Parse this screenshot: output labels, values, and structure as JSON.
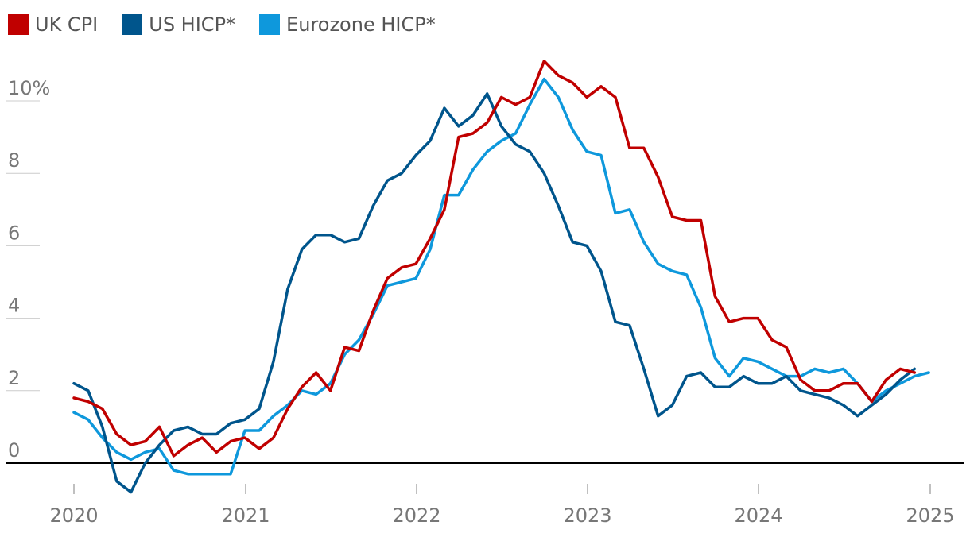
{
  "legend": {
    "items": [
      {
        "label": "UK CPI",
        "color": "#c00000"
      },
      {
        "label": "US HICP*",
        "color": "#00558c"
      },
      {
        "label": "Eurozone HICP*",
        "color": "#0e98dc"
      }
    ]
  },
  "chart_data": {
    "type": "line",
    "title": "",
    "xlabel": "",
    "ylabel": "",
    "ylim": [
      -1,
      12
    ],
    "y_ticks": [
      0,
      2,
      4,
      6,
      8,
      10
    ],
    "y_tick_labels": [
      "0",
      "2",
      "4",
      "6",
      "8",
      "10%"
    ],
    "x_ticks": [
      "2020",
      "2021",
      "2022",
      "2023",
      "2024",
      "2025"
    ],
    "x_start": "2020-01",
    "legend_position": "top-left",
    "grid": "horizontal-short",
    "series": [
      {
        "name": "UK CPI",
        "color": "#c00000",
        "values": [
          1.8,
          1.7,
          1.5,
          0.8,
          0.5,
          0.6,
          1.0,
          0.2,
          0.5,
          0.7,
          0.3,
          0.6,
          0.7,
          0.4,
          0.7,
          1.5,
          2.1,
          2.5,
          2.0,
          3.2,
          3.1,
          4.2,
          5.1,
          5.4,
          5.5,
          6.2,
          7.0,
          9.0,
          9.1,
          9.4,
          10.1,
          9.9,
          10.1,
          11.1,
          10.7,
          10.5,
          10.1,
          10.4,
          10.1,
          8.7,
          8.7,
          7.9,
          6.8,
          6.7,
          6.7,
          4.6,
          3.9,
          4.0,
          4.0,
          3.4,
          3.2,
          2.3,
          2.0,
          2.0,
          2.2,
          2.2,
          1.7,
          2.3,
          2.6,
          2.5
        ]
      },
      {
        "name": "US HICP*",
        "color": "#00558c",
        "values": [
          2.2,
          2.0,
          1.0,
          -0.5,
          -0.8,
          0.0,
          0.5,
          0.9,
          1.0,
          0.8,
          0.8,
          1.1,
          1.2,
          1.5,
          2.8,
          4.8,
          5.9,
          6.3,
          6.3,
          6.1,
          6.2,
          7.1,
          7.8,
          8.0,
          8.5,
          8.9,
          9.8,
          9.3,
          9.6,
          10.2,
          9.3,
          8.8,
          8.6,
          8.0,
          7.1,
          6.1,
          6.0,
          5.3,
          3.9,
          3.8,
          2.6,
          1.3,
          1.6,
          2.4,
          2.5,
          2.1,
          2.1,
          2.4,
          2.2,
          2.2,
          2.4,
          2.0,
          1.9,
          1.8,
          1.6,
          1.3,
          1.6,
          1.9,
          2.3,
          2.6
        ]
      },
      {
        "name": "Eurozone HICP*",
        "color": "#0e98dc",
        "values": [
          1.4,
          1.2,
          0.7,
          0.3,
          0.1,
          0.3,
          0.4,
          -0.2,
          -0.3,
          -0.3,
          -0.3,
          -0.3,
          0.9,
          0.9,
          1.3,
          1.6,
          2.0,
          1.9,
          2.2,
          3.0,
          3.4,
          4.1,
          4.9,
          5.0,
          5.1,
          5.9,
          7.4,
          7.4,
          8.1,
          8.6,
          8.9,
          9.1,
          9.9,
          10.6,
          10.1,
          9.2,
          8.6,
          8.5,
          6.9,
          7.0,
          6.1,
          5.5,
          5.3,
          5.2,
          4.3,
          2.9,
          2.4,
          2.9,
          2.8,
          2.6,
          2.4,
          2.4,
          2.6,
          2.5,
          2.6,
          2.2,
          1.7,
          2.0,
          2.2,
          2.4,
          2.5
        ]
      }
    ]
  }
}
